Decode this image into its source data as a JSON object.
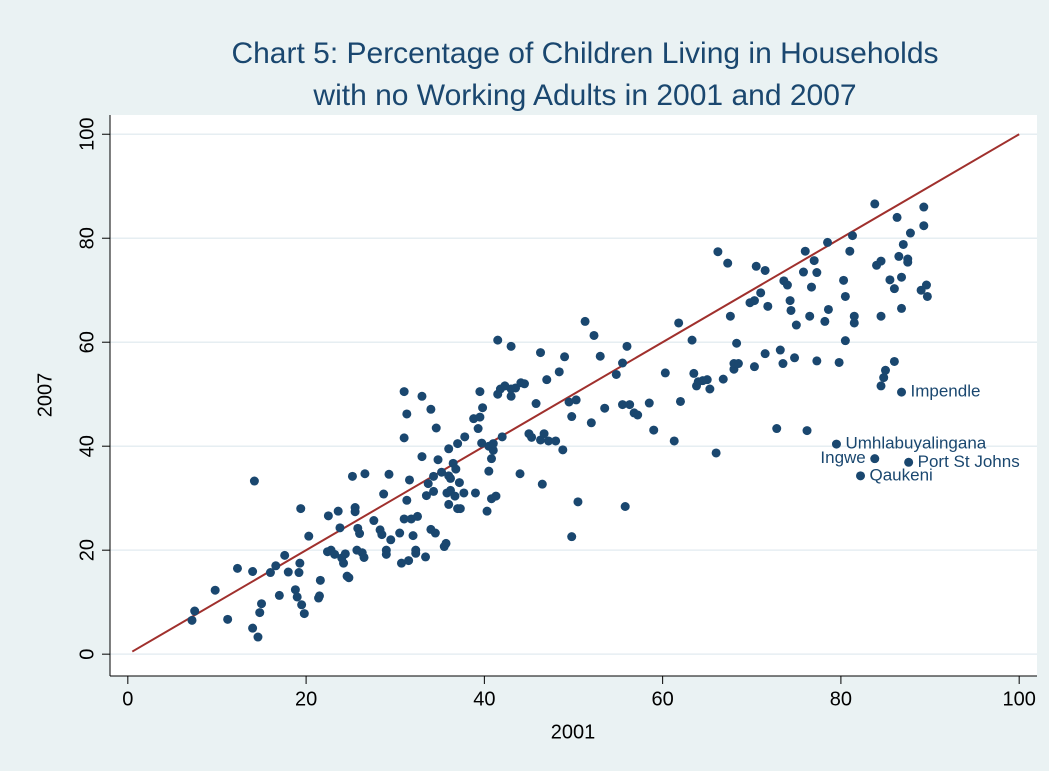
{
  "chart_data": {
    "type": "scatter",
    "title": [
      "Chart 5: Percentage of Children Living in Households",
      "with no Working Adults in 2001 and 2007"
    ],
    "x_label": "2001",
    "y_label": "2007",
    "xlim": [
      -2,
      102
    ],
    "ylim": [
      -4.2,
      103.7
    ],
    "xticks": [
      0,
      20,
      40,
      60,
      80,
      100
    ],
    "yticks": [
      0,
      20,
      40,
      60,
      80,
      100
    ],
    "grid": true,
    "color": "#1a476f",
    "line_color": "#a0302d",
    "reference_line": {
      "x": [
        0.5,
        100
      ],
      "y": [
        0.5,
        100
      ]
    },
    "x": [
      7.2,
      7.5,
      9.8,
      11.2,
      12.3,
      14,
      14.2,
      14,
      14.6,
      14.8,
      15,
      16,
      16.6,
      17,
      17.6,
      18,
      18.8,
      19,
      19.2,
      19.3,
      19.4,
      19.5,
      19.8,
      20.3,
      21.4,
      21.5,
      21.6,
      22.4,
      22.5,
      22.8,
      23.2,
      23.6,
      23.8,
      24,
      24.2,
      24.4,
      24.6,
      24.8,
      25.2,
      25.5,
      25.5,
      25.7,
      25.8,
      26,
      26.3,
      26.6,
      26.5,
      27.6,
      28.3,
      28.5,
      28.7,
      29,
      29,
      29.3,
      29.5,
      30.5,
      30.7,
      31,
      31,
      31,
      31.3,
      31.3,
      31.5,
      31.6,
      31.8,
      32,
      32.3,
      32.3,
      32.5,
      33,
      33,
      33.4,
      33.5,
      33.7,
      34,
      34,
      34.3,
      34.3,
      34.5,
      34.6,
      34.8,
      35.2,
      35.5,
      35.7,
      35.8,
      36,
      36,
      36,
      36.2,
      36.2,
      36.5,
      36.7,
      36.8,
      37,
      37,
      37.2,
      37.3,
      37.7,
      37.8,
      38.8,
      39,
      39.3,
      39.5,
      39.5,
      39.8,
      39.7,
      40.3,
      40.5,
      40.5,
      40.8,
      40.8,
      41,
      41,
      41.3,
      41.5,
      41.5,
      41.8,
      42,
      42.3,
      43,
      43,
      43,
      43.5,
      44,
      44.1,
      44.5,
      45,
      45.3,
      45.8,
      46.3,
      46.3,
      46.5,
      46.7,
      47,
      47.2,
      48,
      48.4,
      48.8,
      49,
      49.5,
      49.8,
      49.8,
      50.3,
      50.5,
      51.3,
      52,
      52.3,
      53,
      53.5,
      54.8,
      55.5,
      55.5,
      55.8,
      56,
      56.3,
      56.8,
      57.2,
      58.5,
      59,
      60.3,
      61.3,
      61.8,
      62,
      63.5,
      63.3,
      63.8,
      64,
      64.5,
      65,
      65.3,
      66,
      66.2,
      66.8,
      67.3,
      67.6,
      68,
      68,
      68.3,
      68.5,
      69.8,
      70.3,
      70.5,
      70.3,
      71,
      71.5,
      71.5,
      71.8,
      72.8,
      73.2,
      73.5,
      73.6,
      74,
      74.3,
      74.4,
      74.8,
      75,
      75.8,
      76,
      76.2,
      76.5,
      76.7,
      77,
      77.3,
      77.3,
      78.2,
      78.5,
      78.6,
      79.8,
      80.3,
      80.5,
      80.5,
      81,
      81.3,
      81.5,
      81.5,
      83.8,
      84,
      84.5,
      84.5,
      84.5,
      84.8,
      85,
      85.5,
      86,
      86,
      86.3,
      86.5,
      86.8,
      86.8,
      87,
      87.5,
      87.5,
      87.8,
      89,
      89.3,
      89.3,
      89.6,
      89.7
    ],
    "y": [
      6.5,
      8.3,
      12.3,
      6.7,
      16.5,
      5,
      33.3,
      15.9,
      3.3,
      8,
      9.7,
      15.7,
      17,
      11.3,
      19,
      15.8,
      12.4,
      11,
      15.7,
      17.5,
      28,
      9.5,
      7.8,
      22.7,
      10.8,
      11.2,
      14.2,
      19.7,
      26.6,
      20,
      19.2,
      27.5,
      24.3,
      18.5,
      17.5,
      19.3,
      15,
      14.7,
      34.2,
      28.2,
      27.4,
      20,
      24.2,
      23.2,
      19.5,
      34.7,
      18.6,
      25.7,
      23.9,
      23,
      30.8,
      20,
      19.2,
      34.6,
      22,
      23.3,
      17.5,
      26,
      41.6,
      50.5,
      46.2,
      29.6,
      18,
      33.5,
      26,
      22.8,
      20,
      19.4,
      26.5,
      38,
      49.6,
      18.7,
      30.5,
      32.8,
      24,
      47.1,
      31.3,
      34.2,
      23.3,
      43.5,
      37.4,
      35,
      20.7,
      21.3,
      31,
      34.3,
      28.8,
      39.5,
      31.5,
      33.8,
      36.7,
      30.4,
      35.6,
      28,
      40.5,
      33,
      28,
      31,
      41.8,
      45.3,
      31,
      43.4,
      50.5,
      45.6,
      47.4,
      40.6,
      27.5,
      40,
      35.2,
      37.6,
      29.9,
      39.2,
      40.5,
      30.4,
      60.4,
      50,
      51,
      41.8,
      51.6,
      51,
      49.6,
      59.2,
      51.2,
      34.7,
      52.2,
      52,
      42.4,
      41.7,
      48.2,
      58,
      41.2,
      32.7,
      42.4,
      52.8,
      41,
      41,
      54.3,
      39.3,
      57.2,
      48.5,
      22.6,
      45.7,
      48.9,
      29.3,
      64,
      44.5,
      61.3,
      57.3,
      47.3,
      53.8,
      48,
      56,
      28.4,
      59.2,
      48,
      46.4,
      46,
      48.3,
      43.1,
      54.1,
      41,
      63.7,
      48.6,
      54,
      60.4,
      51.6,
      52.4,
      52.6,
      52.8,
      51,
      38.7,
      77.4,
      52.9,
      75.2,
      65,
      54.8,
      55.9,
      59.8,
      55.9,
      67.6,
      68,
      74.6,
      55.3,
      69.5,
      73.8,
      57.8,
      66.9,
      43.4,
      58.5,
      55.9,
      71.8,
      71,
      68,
      66.1,
      57,
      63.3,
      73.5,
      77.5,
      43,
      65,
      70.6,
      75.7,
      73.4,
      56.4,
      64,
      79.2,
      66.3,
      56.1,
      71.9,
      60.3,
      68.8,
      77.5,
      80.5,
      65,
      63.7,
      86.6,
      74.8,
      75.6,
      51.6,
      65,
      53.2,
      54.6,
      72,
      70.3,
      56.3,
      84,
      76.5,
      72.5,
      66.5,
      78.8,
      76,
      75.4,
      81,
      70,
      82.4,
      86,
      71,
      68.8
    ],
    "labeled": [
      {
        "label": "Impendle",
        "x": 86.8,
        "y": 50.4,
        "label_side": "right"
      },
      {
        "label": "Umhlabuyalingana",
        "x": 79.5,
        "y": 40.4,
        "label_side": "right"
      },
      {
        "label": "Ingwe",
        "x": 83.8,
        "y": 37.6,
        "label_side": "left"
      },
      {
        "label": "Port St Johns",
        "x": 87.6,
        "y": 36.9,
        "label_side": "right"
      },
      {
        "label": "Qaukeni",
        "x": 82.2,
        "y": 34.3,
        "label_side": "right"
      }
    ]
  }
}
